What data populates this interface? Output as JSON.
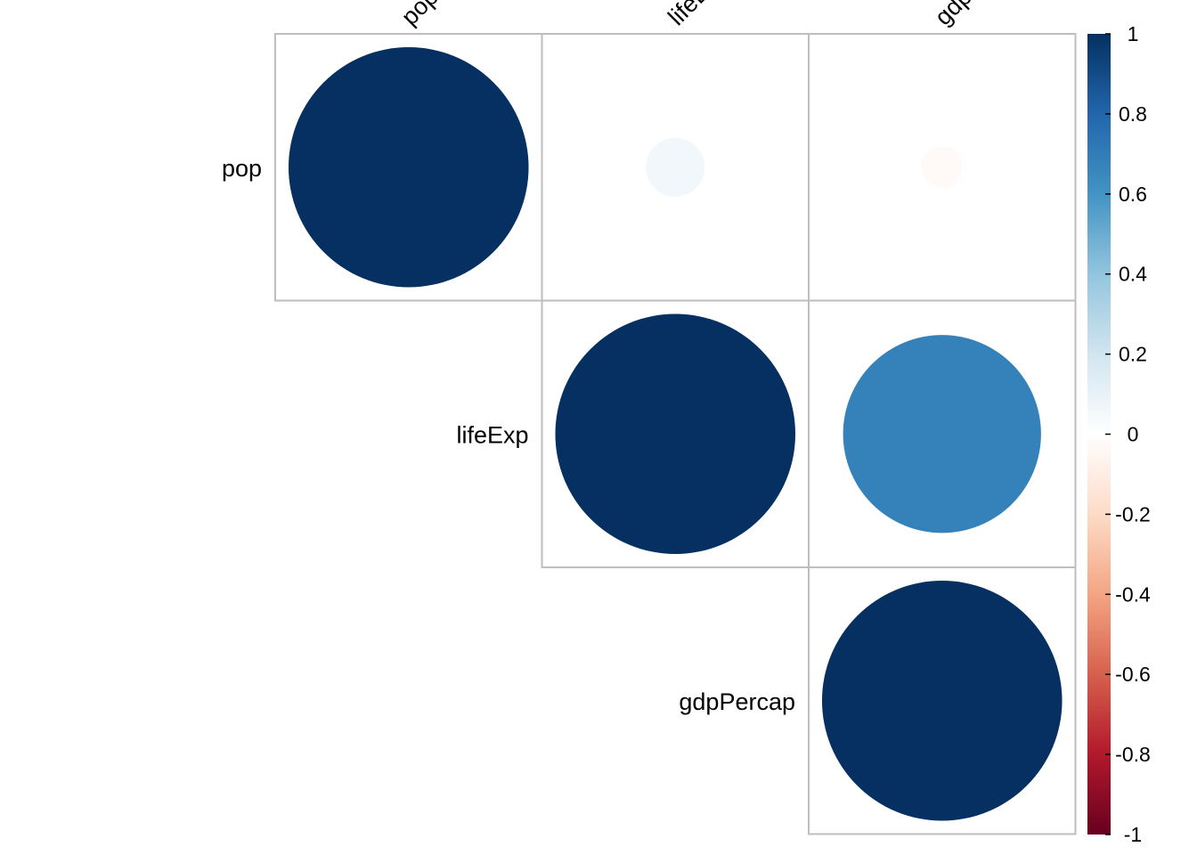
{
  "chart_data": {
    "type": "heatmap",
    "variables": [
      "pop",
      "lifeExp",
      "gdpPercap"
    ],
    "matrix_shape": "upper",
    "cells": [
      {
        "row": "pop",
        "col": "pop",
        "value": 1.0
      },
      {
        "row": "pop",
        "col": "lifeExp",
        "value": 0.06
      },
      {
        "row": "pop",
        "col": "gdpPercap",
        "value": -0.03
      },
      {
        "row": "lifeExp",
        "col": "lifeExp",
        "value": 1.0
      },
      {
        "row": "lifeExp",
        "col": "gdpPercap",
        "value": 0.68
      },
      {
        "row": "gdpPercap",
        "col": "gdpPercap",
        "value": 1.0
      }
    ],
    "colorbar": {
      "range": [
        -1,
        1
      ],
      "ticks": [
        {
          "value": 1,
          "label": "1"
        },
        {
          "value": 0.8,
          "label": "0.8"
        },
        {
          "value": 0.6,
          "label": "0.6"
        },
        {
          "value": 0.4,
          "label": "0.4"
        },
        {
          "value": 0.2,
          "label": "0.2"
        },
        {
          "value": 0,
          "label": "0"
        },
        {
          "value": -0.2,
          "label": "-0.2"
        },
        {
          "value": -0.4,
          "label": "-0.4"
        },
        {
          "value": -0.6,
          "label": "-0.6"
        },
        {
          "value": -0.8,
          "label": "-0.8"
        },
        {
          "value": -1,
          "label": "-1"
        }
      ],
      "colors": [
        "#67001F",
        "#B2182B",
        "#D6604D",
        "#F4A582",
        "#FDDBC7",
        "#FFFFFF",
        "#D1E5F0",
        "#92C5DE",
        "#4393C3",
        "#2166AC",
        "#053061"
      ]
    },
    "column_labels": [
      "pop",
      "lifeExp",
      "gdpPercap"
    ],
    "row_labels": [
      "pop",
      "lifeExp",
      "gdpPercap"
    ],
    "grid_color": "#BEBEBE"
  }
}
